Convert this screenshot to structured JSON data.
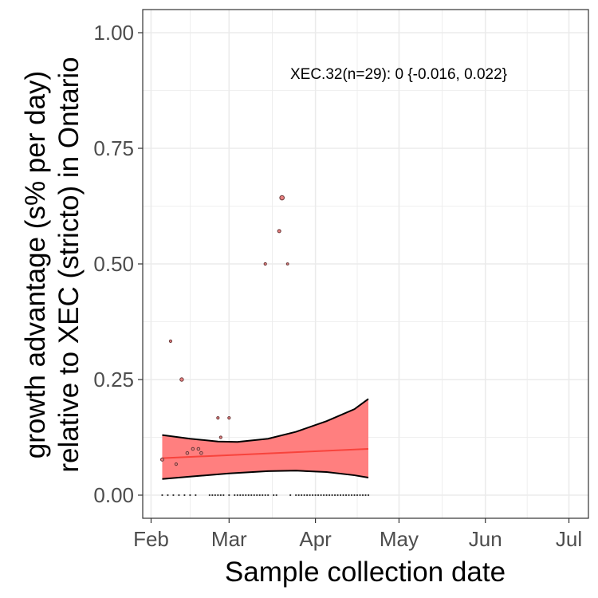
{
  "chart_data": {
    "type": "scatter",
    "xlabel": "Sample collection date",
    "ylabel_lines": [
      "growth advantage (s% per day)",
      "relative to XEC (stricto) in Ontario"
    ],
    "annotation": "XEC.32(n=29): 0 {-0.016, 0.022}",
    "x_domain": [
      "2025-01-29",
      "2025-07-08"
    ],
    "ylim": [
      -0.05,
      1.05
    ],
    "x_ticks": [
      {
        "date": "2025-02-01",
        "label": "Feb"
      },
      {
        "date": "2025-03-01",
        "label": "Mar"
      },
      {
        "date": "2025-04-01",
        "label": "Apr"
      },
      {
        "date": "2025-05-01",
        "label": "May"
      },
      {
        "date": "2025-06-01",
        "label": "Jun"
      },
      {
        "date": "2025-07-01",
        "label": "Jul"
      }
    ],
    "y_ticks": [
      {
        "value": 0.0,
        "label": "0.00"
      },
      {
        "value": 0.25,
        "label": "0.25"
      },
      {
        "value": 0.5,
        "label": "0.50"
      },
      {
        "value": 0.75,
        "label": "0.75"
      },
      {
        "value": 1.0,
        "label": "1.00"
      }
    ],
    "grid": true,
    "colors": {
      "band_fill": "#ff7f7f",
      "fit_line": "#f8433c",
      "band_edge": "#000000",
      "point_fill": "#e88080",
      "point_edge": "#6b3a3a",
      "grid": "#ebebeb",
      "zero_points": "#333333"
    },
    "fit_line": [
      {
        "date": "2025-02-05",
        "y": 0.08
      },
      {
        "date": "2025-04-20",
        "y": 0.1
      }
    ],
    "ci_upper": [
      {
        "date": "2025-02-05",
        "y": 0.13
      },
      {
        "date": "2025-02-15",
        "y": 0.122
      },
      {
        "date": "2025-02-25",
        "y": 0.116
      },
      {
        "date": "2025-03-04",
        "y": 0.115
      },
      {
        "date": "2025-03-15",
        "y": 0.122
      },
      {
        "date": "2025-03-25",
        "y": 0.137
      },
      {
        "date": "2025-04-05",
        "y": 0.16
      },
      {
        "date": "2025-04-15",
        "y": 0.186
      },
      {
        "date": "2025-04-20",
        "y": 0.208
      }
    ],
    "ci_lower": [
      {
        "date": "2025-02-05",
        "y": 0.035
      },
      {
        "date": "2025-02-15",
        "y": 0.04
      },
      {
        "date": "2025-03-01",
        "y": 0.047
      },
      {
        "date": "2025-03-15",
        "y": 0.052
      },
      {
        "date": "2025-03-25",
        "y": 0.053
      },
      {
        "date": "2025-04-05",
        "y": 0.05
      },
      {
        "date": "2025-04-15",
        "y": 0.043
      },
      {
        "date": "2025-04-20",
        "y": 0.038
      }
    ],
    "points": [
      {
        "date": "2025-02-05",
        "y": 0.077,
        "r": 2.0
      },
      {
        "date": "2025-02-08",
        "y": 0.333,
        "r": 1.6
      },
      {
        "date": "2025-02-10",
        "y": 0.067,
        "r": 1.6
      },
      {
        "date": "2025-02-12",
        "y": 0.25,
        "r": 2.2
      },
      {
        "date": "2025-02-14",
        "y": 0.091,
        "r": 1.8
      },
      {
        "date": "2025-02-16",
        "y": 0.1,
        "r": 1.8
      },
      {
        "date": "2025-02-18",
        "y": 0.1,
        "r": 1.8
      },
      {
        "date": "2025-02-19",
        "y": 0.091,
        "r": 1.8
      },
      {
        "date": "2025-02-25",
        "y": 0.167,
        "r": 1.6
      },
      {
        "date": "2025-02-26",
        "y": 0.125,
        "r": 1.6
      },
      {
        "date": "2025-03-01",
        "y": 0.167,
        "r": 1.6
      },
      {
        "date": "2025-03-14",
        "y": 0.5,
        "r": 1.6
      },
      {
        "date": "2025-03-19",
        "y": 0.571,
        "r": 2.0
      },
      {
        "date": "2025-03-20",
        "y": 0.643,
        "r": 2.8
      },
      {
        "date": "2025-03-22",
        "y": 0.5,
        "r": 1.4
      }
    ],
    "zero_points": [
      "2025-02-05",
      "2025-02-07",
      "2025-02-09",
      "2025-02-11",
      "2025-02-13",
      "2025-02-15",
      "2025-02-17",
      "2025-02-22",
      "2025-02-23",
      "2025-02-24",
      "2025-02-25",
      "2025-02-26",
      "2025-02-27",
      "2025-03-01",
      "2025-03-03",
      "2025-03-04",
      "2025-03-05",
      "2025-03-06",
      "2025-03-07",
      "2025-03-08",
      "2025-03-09",
      "2025-03-10",
      "2025-03-11",
      "2025-03-12",
      "2025-03-13",
      "2025-03-14",
      "2025-03-15",
      "2025-03-17",
      "2025-03-18",
      "2025-03-23",
      "2025-03-25",
      "2025-03-26",
      "2025-03-27",
      "2025-03-28",
      "2025-03-29",
      "2025-03-30",
      "2025-03-31",
      "2025-04-01",
      "2025-04-02",
      "2025-04-03",
      "2025-04-04",
      "2025-04-05",
      "2025-04-06",
      "2025-04-07",
      "2025-04-08",
      "2025-04-09",
      "2025-04-10",
      "2025-04-11",
      "2025-04-12",
      "2025-04-13",
      "2025-04-14",
      "2025-04-15",
      "2025-04-16",
      "2025-04-17",
      "2025-04-18",
      "2025-04-19",
      "2025-04-20"
    ]
  }
}
